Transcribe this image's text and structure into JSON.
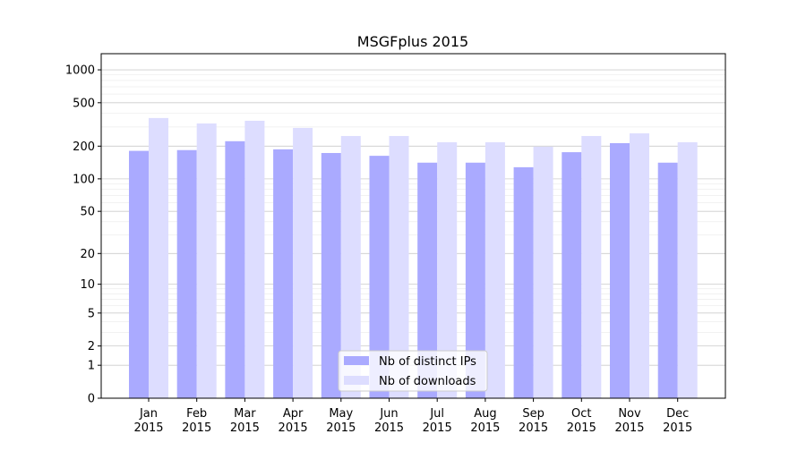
{
  "chart_data": {
    "type": "bar",
    "title": "MSGFplus 2015",
    "xlabel": "",
    "ylabel": "",
    "yscale": "symlog",
    "ylim": [
      0,
      1300
    ],
    "yticks": [
      "0",
      "1",
      "2",
      "5",
      "10",
      "20",
      "50",
      "100",
      "200",
      "500",
      "1000"
    ],
    "ytick_values": [
      0,
      1,
      2,
      5,
      10,
      20,
      50,
      100,
      200,
      500,
      1000
    ],
    "grid": true,
    "legend": "bottom-center",
    "categories": [
      [
        "Jan",
        "2015"
      ],
      [
        "Feb",
        "2015"
      ],
      [
        "Mar",
        "2015"
      ],
      [
        "Apr",
        "2015"
      ],
      [
        "May",
        "2015"
      ],
      [
        "Jun",
        "2015"
      ],
      [
        "Jul",
        "2015"
      ],
      [
        "Aug",
        "2015"
      ],
      [
        "Sep",
        "2015"
      ],
      [
        "Oct",
        "2015"
      ],
      [
        "Nov",
        "2015"
      ],
      [
        "Dec",
        "2015"
      ]
    ],
    "series": [
      {
        "name": "Nb of distinct IPs",
        "color": "#aaaaff",
        "values": [
          181,
          184,
          222,
          187,
          173,
          163,
          141,
          141,
          128,
          176,
          213,
          141
        ]
      },
      {
        "name": "Nb of downloads",
        "color": "#ddddff",
        "values": [
          362,
          323,
          342,
          294,
          248,
          248,
          217,
          217,
          198,
          248,
          262,
          217
        ]
      }
    ]
  }
}
